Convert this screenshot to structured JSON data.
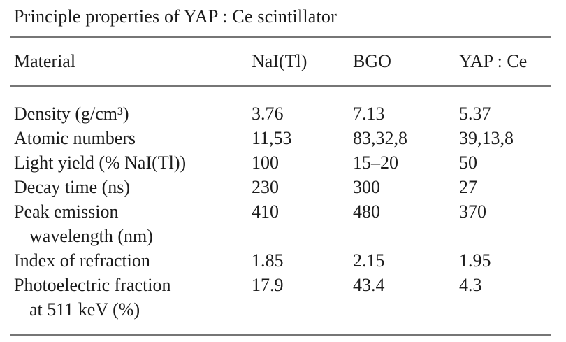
{
  "title": "Principle properties of YAP : Ce scintillator",
  "table": {
    "columns": [
      "Material",
      "NaI(Tl)",
      "BGO",
      "YAP : Ce"
    ],
    "rows": [
      {
        "label": "Density (g/cm³)",
        "values": [
          "3.76",
          "7.13",
          "5.37"
        ]
      },
      {
        "label": "Atomic numbers",
        "values": [
          "11,53",
          "83,32,8",
          "39,13,8"
        ]
      },
      {
        "label": "Light yield (% NaI(Tl))",
        "values": [
          "100",
          "15–20",
          "50"
        ]
      },
      {
        "label": "Decay time (ns)",
        "values": [
          "230",
          "300",
          "27"
        ]
      },
      {
        "label": "Peak emission",
        "label2": "wavelength (nm)",
        "values": [
          "410",
          "480",
          "370"
        ]
      },
      {
        "label": "Index of refraction",
        "values": [
          "1.85",
          "2.15",
          "1.95"
        ]
      },
      {
        "label": "Photoelectric fraction",
        "label2": "at 511 keV (%)",
        "values": [
          "17.9",
          "43.4",
          "4.3"
        ]
      }
    ]
  },
  "colors": {
    "background": "#ffffff",
    "text": "#1b1b1b",
    "rule": "#767676"
  }
}
